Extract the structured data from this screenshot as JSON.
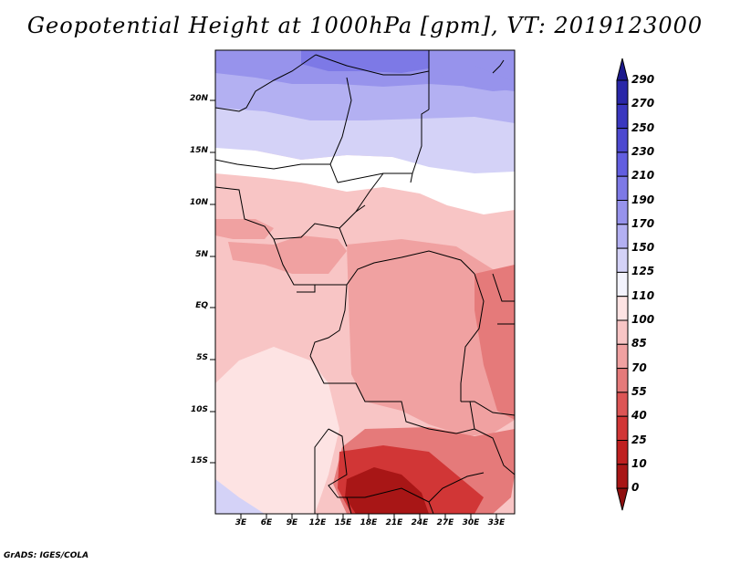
{
  "title": "Geopotential Height at 1000hPa [gpm], VT: 2019123000",
  "credit": "GrADS: IGES/COLA",
  "lat_labels": [
    "20N",
    "15N",
    "10N",
    "5N",
    "EQ",
    "5S",
    "10S",
    "15S"
  ],
  "lon_labels": [
    "3E",
    "6E",
    "9E",
    "12E",
    "15E",
    "18E",
    "21E",
    "24E",
    "27E",
    "30E",
    "33E"
  ],
  "colorbar": {
    "labels": [
      "290",
      "270",
      "250",
      "230",
      "210",
      "190",
      "170",
      "150",
      "125",
      "110",
      "100",
      "85",
      "70",
      "55",
      "40",
      "25",
      "10",
      "0"
    ],
    "colors": [
      "#1c1a8c",
      "#2a27a8",
      "#3a37bf",
      "#4d49d0",
      "#625ee0",
      "#7d79e6",
      "#9793ec",
      "#b3b0f2",
      "#d4d2f7",
      "#f3f3fd",
      "#fde3e3",
      "#f8c5c5",
      "#f0a1a1",
      "#e57a7a",
      "#dc5555",
      "#d13636",
      "#bf2020",
      "#a81616",
      "#8f0f0f"
    ]
  },
  "map": {
    "colors": {
      "dark_red": "#a81616",
      "red": "#d13636",
      "mid_red": "#e57a7a",
      "salmon": "#f0a1a1",
      "pink": "#f8c5c5",
      "light_pink": "#fde3e3",
      "white": "#ffffff",
      "pale_blue": "#d4d2f7",
      "light_blue": "#b3b0f2",
      "blue": "#9793ec",
      "mid_blue": "#7d79e6"
    }
  }
}
